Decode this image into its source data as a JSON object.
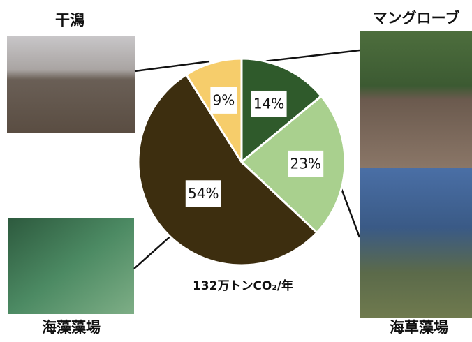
{
  "chart_data": {
    "type": "pie",
    "categories": [
      "マングローブ",
      "海草藻場",
      "海藻藻場",
      "干潟"
    ],
    "values": [
      14,
      23,
      54,
      9
    ],
    "value_labels": [
      "14%",
      "23%",
      "54%",
      "9%"
    ],
    "colors": [
      "#2f5a2b",
      "#a9d08e",
      "#3d2e0f",
      "#f6cd6b"
    ],
    "caption": "132万トンCO₂/年"
  }
}
